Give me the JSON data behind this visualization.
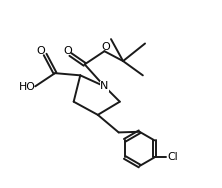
{
  "bg_color": "#ffffff",
  "line_color": "#1a1a1a",
  "line_width": 1.4,
  "figsize": [
    2.22,
    1.88
  ],
  "dpi": 100,
  "xlim": [
    0,
    10
  ],
  "ylim": [
    0,
    8.5
  ]
}
